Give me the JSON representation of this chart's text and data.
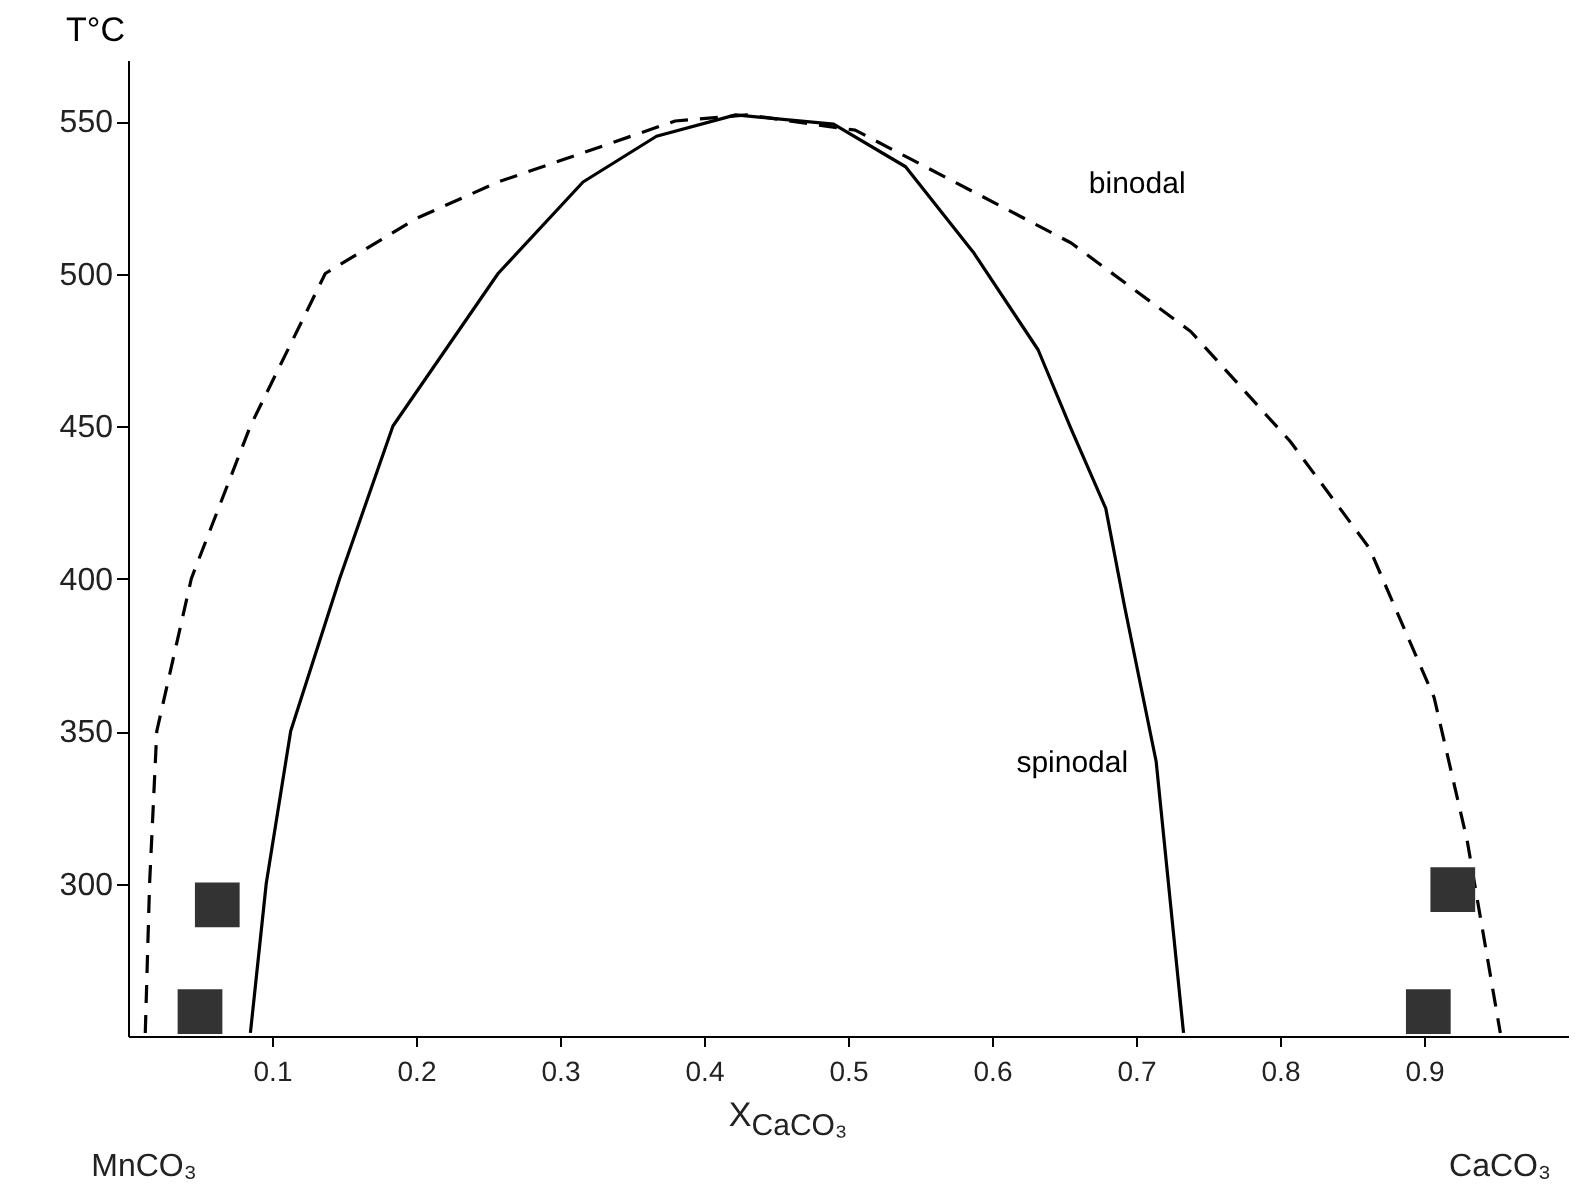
{
  "chart_data": {
    "type": "line",
    "xlabel": "X$_{CaCO₃}$",
    "ylabel": "T°C",
    "xlim": [
      0,
      1
    ],
    "ylim": [
      250,
      570
    ],
    "xticks": [
      0.1,
      0.2,
      0.3,
      0.4,
      0.5,
      0.6,
      0.7,
      0.8,
      0.9
    ],
    "yticks": [
      300,
      350,
      400,
      450,
      500,
      550
    ],
    "grid": false,
    "legend": false,
    "annotations": [
      "MnCO₃",
      "CaCO₃"
    ],
    "series": [
      {
        "name": "binodal",
        "color": "#000000",
        "line_style": "dashed",
        "marker": "none",
        "x": [
          0.012,
          0.015,
          0.02,
          0.044,
          0.085,
          0.137,
          0.2,
          0.257,
          0.38,
          0.43,
          0.505,
          0.57,
          0.655,
          0.738,
          0.807,
          0.862,
          0.907,
          0.93,
          0.953
        ],
        "values": [
          251,
          300,
          350,
          400,
          450,
          500,
          518,
          530,
          550,
          552,
          547,
          531,
          510,
          481,
          445,
          410,
          361,
          314,
          251
        ]
      },
      {
        "name": "spinodal",
        "color": "#000000",
        "line_style": "solid",
        "marker": "none",
        "x": [
          0.085,
          0.096,
          0.113,
          0.147,
          0.184,
          0.257,
          0.316,
          0.367,
          0.422,
          0.49,
          0.54,
          0.587,
          0.632,
          0.655,
          0.679,
          0.692,
          0.714,
          0.733
        ],
        "values": [
          251,
          300,
          350,
          400,
          450,
          500,
          530,
          545,
          552,
          549,
          535,
          507,
          475,
          449,
          423,
          391,
          340,
          251
        ]
      },
      {
        "type": "scatter",
        "color": "#333333",
        "marker": "square",
        "x": [
          0.062,
          0.05,
          0.92,
          0.903
        ],
        "values": [
          293,
          258,
          298,
          258
        ]
      }
    ]
  }
}
